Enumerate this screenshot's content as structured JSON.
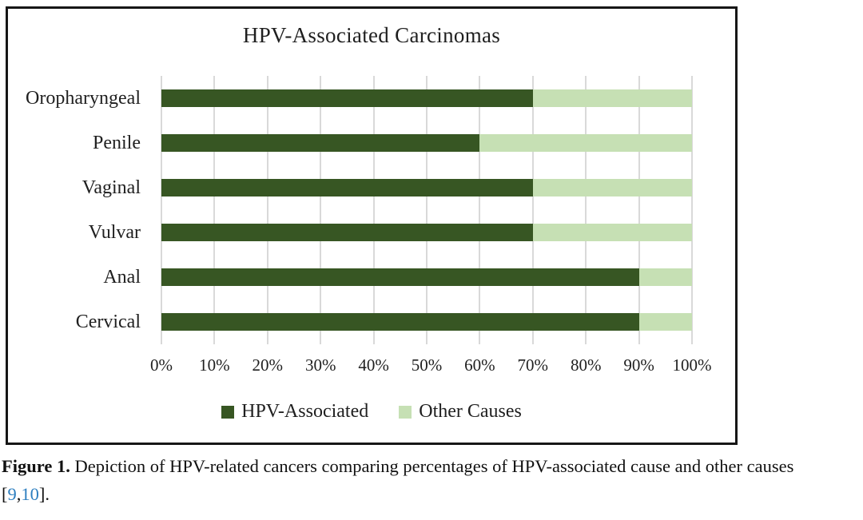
{
  "chart_data": {
    "type": "bar",
    "orientation": "horizontal",
    "stacked": true,
    "title": "HPV-Associated Carcinomas",
    "categories": [
      "Oropharyngeal",
      "Penile",
      "Vaginal",
      "Vulvar",
      "Anal",
      "Cervical"
    ],
    "series": [
      {
        "name": "HPV-Associated",
        "color": "#375623",
        "values": [
          70,
          60,
          70,
          70,
          90,
          90
        ]
      },
      {
        "name": "Other Causes",
        "color": "#c6e0b4",
        "values": [
          30,
          40,
          30,
          30,
          10,
          10
        ]
      }
    ],
    "x_ticks": [
      "0%",
      "10%",
      "20%",
      "30%",
      "40%",
      "50%",
      "60%",
      "70%",
      "80%",
      "90%",
      "100%"
    ],
    "xlim": [
      0,
      100
    ],
    "grid": "vertical-only",
    "gridline_color": "#d9d9d9",
    "legend_position": "bottom"
  },
  "caption": {
    "label": "Figure 1.",
    "body": "Depiction of HPV-related cancers comparing percentages of HPV-associated cause and other causes",
    "ref_open": "[",
    "refs": [
      "9",
      "10"
    ],
    "ref_separator": ",",
    "ref_close": "].",
    "link_color": "#2e7fc0"
  }
}
